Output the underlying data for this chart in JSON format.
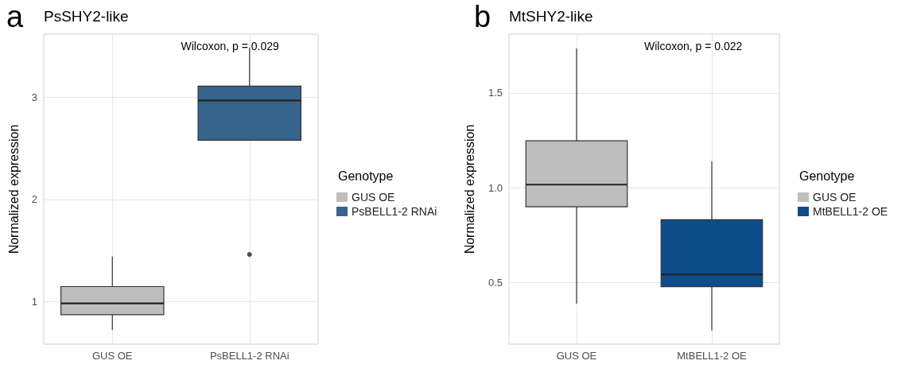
{
  "chart_data": [
    {
      "type": "box",
      "title": "PsSHY2-like",
      "ylabel": "Normalized expression",
      "legend_title": "Genotype",
      "categories": [
        "GUS OE",
        "PsBELL1-2 RNAi"
      ],
      "series": [
        {
          "name": "GUS OE",
          "color": "#bebebe",
          "boxes": [
            {
              "low": 0.72,
              "q1": 0.87,
              "median": 0.98,
              "q3": 1.145,
              "high": 1.44
            },
            null
          ]
        },
        {
          "name": "PsBELL1-2 RNAi",
          "color": "#37648c",
          "boxes": [
            null,
            {
              "low": 2.58,
              "q1": 2.58,
              "median": 2.97,
              "q3": 3.11,
              "high": 3.49,
              "outliers": [
                1.46
              ]
            }
          ]
        }
      ],
      "ylim": [
        0.58,
        3.62
      ],
      "yticks": [
        1,
        2,
        3
      ],
      "grid": true,
      "legend": "right",
      "annotations": [
        "a",
        "Wilcoxon, p = 0.029"
      ]
    },
    {
      "type": "box",
      "title": "MtSHY2-like",
      "ylabel": "Normalized expression",
      "legend_title": "Genotype",
      "categories": [
        "GUS OE",
        "MtBELL1-2 OE"
      ],
      "series": [
        {
          "name": "GUS OE",
          "color": "#bebebe",
          "boxes": [
            {
              "low": 0.39,
              "q1": 0.9,
              "median": 1.017,
              "q3": 1.248,
              "high": 1.735
            },
            null
          ]
        },
        {
          "name": "MtBELL1-2 OE",
          "color": "#0f4c8a",
          "boxes": [
            null,
            {
              "low": 0.248,
              "q1": 0.479,
              "median": 0.543,
              "q3": 0.832,
              "high": 1.14
            }
          ]
        }
      ],
      "ylim": [
        0.176,
        1.81
      ],
      "yticks": [
        {
          "value": 0.5,
          "label": "0.5"
        },
        {
          "value": 1,
          "label": "1.0"
        },
        {
          "value": 1.5,
          "label": "1.5"
        }
      ],
      "grid": true,
      "legend": "right",
      "annotations": [
        "b",
        "Wilcoxon, p = 0.022"
      ]
    }
  ]
}
